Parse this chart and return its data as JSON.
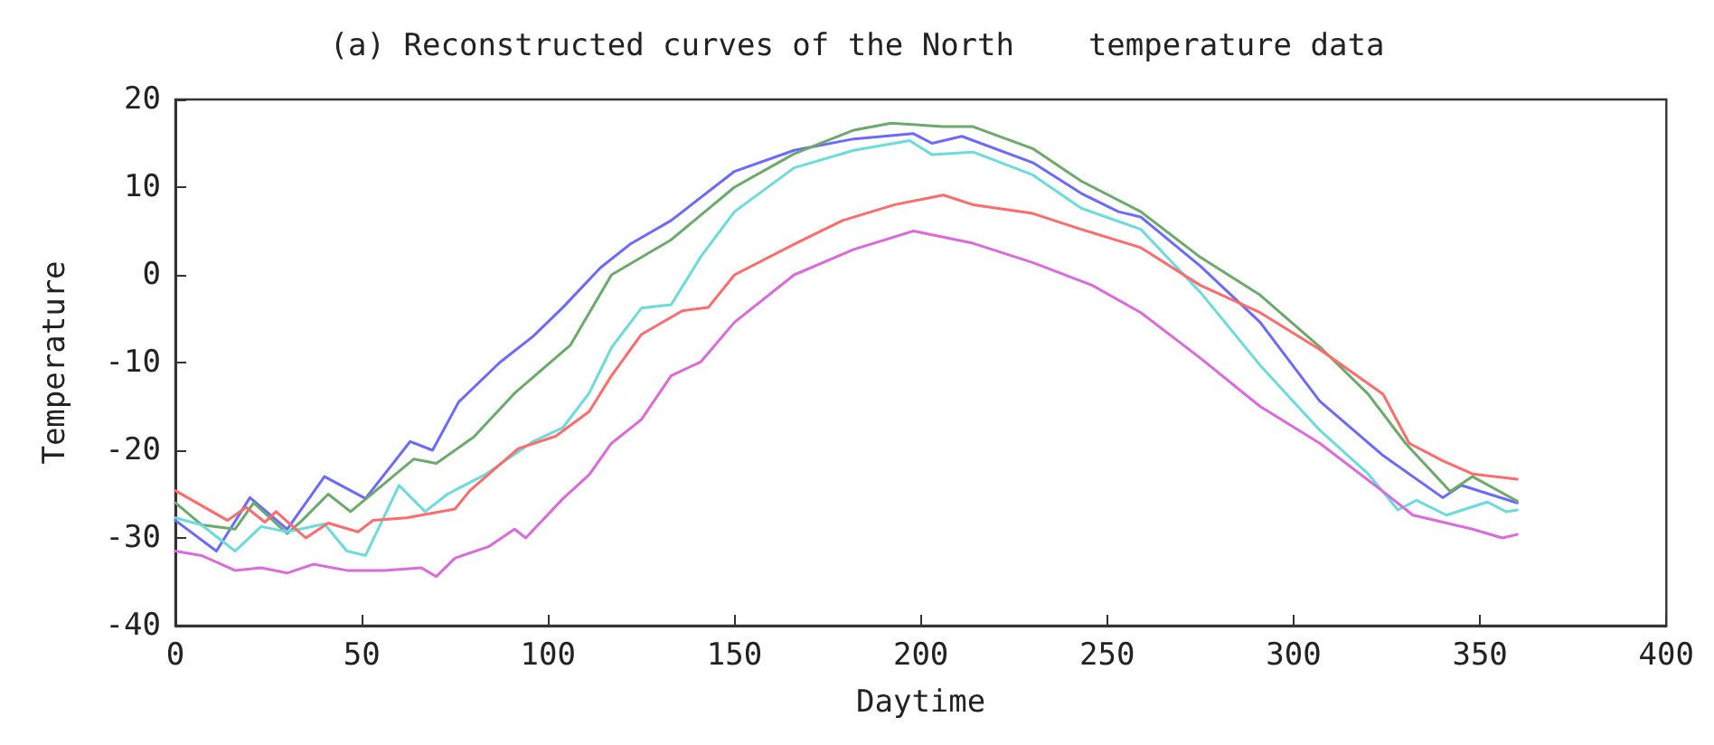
{
  "chart_data": {
    "type": "line",
    "title": "(a) Reconstructed curves of the North    temperature data",
    "xlabel": "Daytime",
    "ylabel": "Temperature",
    "xlim": [
      0,
      400
    ],
    "xticks": [
      0,
      50,
      100,
      150,
      200,
      250,
      300,
      350,
      400
    ],
    "ylim": [
      -40,
      20
    ],
    "yticks": [
      -40,
      -30,
      -20,
      -10,
      0,
      10,
      20
    ],
    "grid": false,
    "marker": "none",
    "line_style": "solid",
    "series": [
      {
        "color": "#6a6aff",
        "x": [
          0,
          11,
          20,
          30,
          40,
          51,
          63,
          69,
          76,
          87,
          96,
          104,
          114,
          122,
          133,
          150,
          166,
          182,
          198,
          203,
          211,
          230,
          243,
          253,
          259,
          275,
          291,
          307,
          324,
          340,
          345,
          360
        ],
        "values": [
          -28,
          -31.5,
          -25.4,
          -29,
          -23,
          -25.5,
          -19,
          -20,
          -14.5,
          -10,
          -7,
          -3.7,
          0.8,
          3.5,
          6.2,
          11.8,
          14.2,
          15.5,
          16.1,
          15,
          15.8,
          12.8,
          9.3,
          7.2,
          6.6,
          1,
          -5.4,
          -14.4,
          -20.6,
          -25.4,
          -24,
          -26
        ]
      },
      {
        "color": "#6aaa6a",
        "x": [
          0,
          7,
          16,
          21,
          30,
          34,
          41,
          47,
          64,
          70,
          80,
          91,
          106,
          117,
          133,
          150,
          166,
          182,
          192,
          206,
          214,
          230,
          243,
          259,
          275,
          291,
          307,
          320,
          330,
          342,
          348,
          360
        ],
        "values": [
          -26,
          -28.5,
          -29,
          -26,
          -29.5,
          -28,
          -25,
          -27,
          -21,
          -21.5,
          -18.5,
          -13.5,
          -8,
          0,
          4,
          10,
          13.8,
          16.5,
          17.3,
          16.9,
          16.9,
          14.4,
          10.7,
          7.2,
          2,
          -2.3,
          -8.2,
          -13.6,
          -19.2,
          -24.7,
          -23,
          -25.8
        ]
      },
      {
        "color": "#6adcdc",
        "x": [
          0,
          7,
          16,
          23,
          30,
          40,
          46,
          51,
          60,
          67,
          73,
          83,
          96,
          104,
          111,
          117,
          125,
          133,
          141,
          150,
          166,
          182,
          197,
          203,
          214,
          230,
          243,
          259,
          275,
          291,
          307,
          320,
          328,
          333,
          341,
          352,
          357,
          360
        ],
        "values": [
          -27.7,
          -28.5,
          -31.5,
          -28.7,
          -29.3,
          -28.4,
          -31.5,
          -32,
          -24,
          -27,
          -25,
          -22.8,
          -19,
          -17.4,
          -13.5,
          -8.3,
          -3.8,
          -3.4,
          2.1,
          7.2,
          12.2,
          14.2,
          15.3,
          13.7,
          14,
          11.4,
          7.6,
          5.2,
          -2,
          -10.3,
          -17.7,
          -22.7,
          -26.8,
          -25.7,
          -27.4,
          -25.9,
          -27,
          -26.8
        ]
      },
      {
        "color": "#ff6a6a",
        "x": [
          0,
          14,
          19,
          24,
          27,
          35,
          41,
          49,
          53,
          62,
          75,
          79,
          92,
          102,
          111,
          117,
          125,
          136,
          143,
          150,
          166,
          179,
          193,
          206,
          214,
          230,
          243,
          259,
          275,
          291,
          307,
          324,
          331,
          340,
          348,
          360
        ],
        "values": [
          -24.6,
          -28,
          -26.5,
          -28.2,
          -27,
          -30,
          -28.3,
          -29.3,
          -28,
          -27.7,
          -26.7,
          -24.6,
          -19.8,
          -18.4,
          -15.6,
          -11.5,
          -6.8,
          -4.1,
          -3.7,
          0,
          3.5,
          6.2,
          8,
          9.1,
          8,
          7,
          5.2,
          3.1,
          -1.2,
          -4.3,
          -8.5,
          -13.6,
          -19.2,
          -21.2,
          -22.7,
          -23.3
        ]
      },
      {
        "color": "#dc6adc",
        "x": [
          0,
          7,
          16,
          23,
          30,
          37,
          46,
          56,
          66,
          70,
          75,
          84,
          91,
          94,
          104,
          111,
          117,
          125,
          133,
          141,
          150,
          166,
          182,
          198,
          214,
          230,
          246,
          259,
          275,
          291,
          307,
          324,
          332,
          348,
          356,
          360
        ],
        "values": [
          -31.5,
          -32,
          -33.7,
          -33.4,
          -34,
          -33,
          -33.7,
          -33.7,
          -33.4,
          -34.4,
          -32.3,
          -31,
          -29,
          -30,
          -25.5,
          -22.8,
          -19.2,
          -16.5,
          -11.5,
          -9.9,
          -5.4,
          0,
          2.9,
          5,
          3.6,
          1.4,
          -1.2,
          -4.3,
          -9.5,
          -15,
          -19.2,
          -24.7,
          -27.4,
          -29,
          -30,
          -29.6
        ]
      }
    ]
  }
}
